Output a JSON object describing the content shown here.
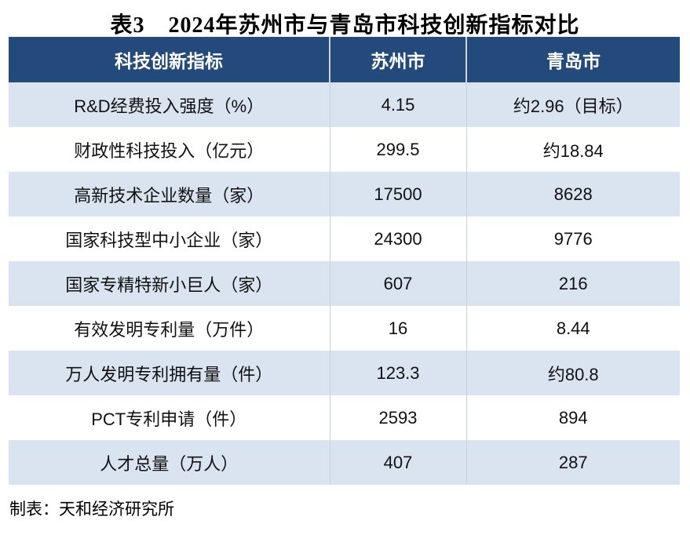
{
  "title": {
    "prefix": "表3",
    "text": "2024年苏州市与青岛市科技创新指标对比"
  },
  "table": {
    "headers": [
      "科技创新指标",
      "苏州市",
      "青岛市"
    ],
    "rows": [
      {
        "indicator": "R&D经费投入强度（%）",
        "suzhou": "4.15",
        "qingdao": "约2.96（目标）"
      },
      {
        "indicator": "财政性科技投入（亿元）",
        "suzhou": "299.5",
        "qingdao": "约18.84"
      },
      {
        "indicator": "高新技术企业数量（家）",
        "suzhou": "17500",
        "qingdao": "8628"
      },
      {
        "indicator": "国家科技型中小企业（家）",
        "suzhou": "24300",
        "qingdao": "9776"
      },
      {
        "indicator": "国家专精特新小巨人（家）",
        "suzhou": "607",
        "qingdao": "216"
      },
      {
        "indicator": "有效发明专利量（万件）",
        "suzhou": "16",
        "qingdao": "8.44"
      },
      {
        "indicator": "万人发明专利拥有量（件）",
        "suzhou": "123.3",
        "qingdao": "约80.8"
      },
      {
        "indicator": "PCT专利申请（件）",
        "suzhou": "2593",
        "qingdao": "894"
      },
      {
        "indicator": "人才总量（万人）",
        "suzhou": "407",
        "qingdao": "287"
      }
    ]
  },
  "footer": {
    "credit": "制表：天和经济研究所"
  },
  "colors": {
    "header_bg": "#24497B",
    "band_bg": "#DAE3F0",
    "header_text": "#FFFFFF",
    "body_text": "#111111"
  }
}
